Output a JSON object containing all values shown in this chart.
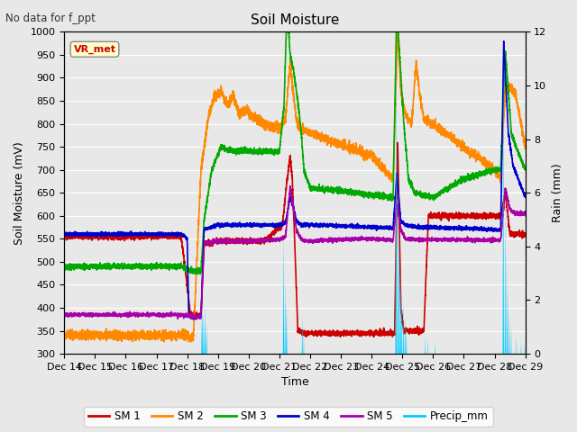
{
  "title": "Soil Moisture",
  "subtitle": "No data for f_ppt",
  "ylabel_left": "Soil Moisture (mV)",
  "ylabel_right": "Rain (mm)",
  "xlabel": "Time",
  "ylim_left": [
    300,
    1000
  ],
  "ylim_right": [
    0,
    12
  ],
  "background_color": "#e8e8e8",
  "legend_label": "VR_met",
  "x_tick_labels": [
    "Dec 14",
    "Dec 15",
    "Dec 16",
    "Dec 17",
    "Dec 18",
    "Dec 19",
    "Dec 20",
    "Dec 21",
    "Dec 22",
    "Dec 23",
    "Dec 24",
    "Dec 25",
    "Dec 26",
    "Dec 27",
    "Dec 28",
    "Dec 29"
  ],
  "series_colors": {
    "SM1": "#cc0000",
    "SM2": "#ff8800",
    "SM3": "#00aa00",
    "SM4": "#0000cc",
    "SM5": "#aa00aa",
    "Precip": "#00ccff"
  },
  "line_width": 1.2
}
